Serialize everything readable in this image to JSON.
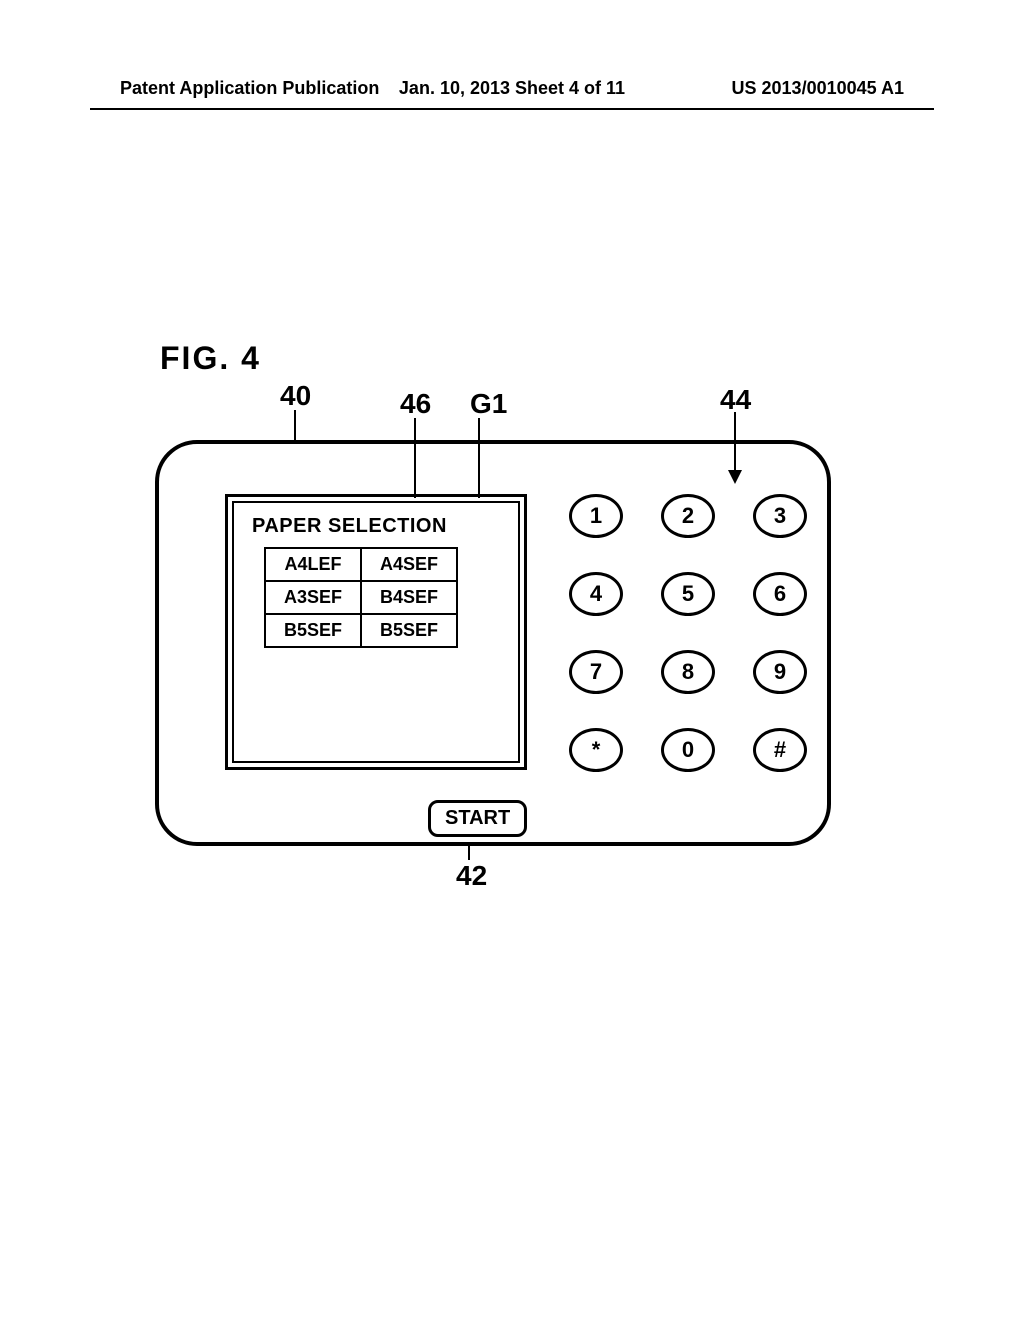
{
  "header": {
    "left": "Patent Application Publication",
    "center": "Jan. 10, 2013  Sheet 4 of 11",
    "right": "US 2013/0010045 A1"
  },
  "figure_label": "FIG. 4",
  "refs": {
    "r40": "40",
    "r46": "46",
    "rG1": "G1",
    "r44": "44",
    "r42": "42"
  },
  "display": {
    "title": "PAPER SELECTION",
    "options": [
      [
        "A4LEF",
        "A4SEF"
      ],
      [
        "A3SEF",
        "B4SEF"
      ],
      [
        "B5SEF",
        "B5SEF"
      ]
    ]
  },
  "start_label": "START",
  "keypad": [
    "1",
    "2",
    "3",
    "4",
    "5",
    "6",
    "7",
    "8",
    "9",
    "*",
    "0",
    "#"
  ],
  "style": {
    "line_color": "#000000",
    "background": "#ffffff",
    "panel_border_width": 4,
    "panel_radius": 42,
    "display_outer_border": 3,
    "display_inner_border": 2,
    "key_border_width": 3,
    "font_main": "Arial",
    "fig_fontsize": 32,
    "ref_fontsize": 28,
    "title_fontsize": 20,
    "cell_fontsize": 18,
    "key_fontsize": 22,
    "start_fontsize": 20,
    "header_fontsize": 18
  }
}
